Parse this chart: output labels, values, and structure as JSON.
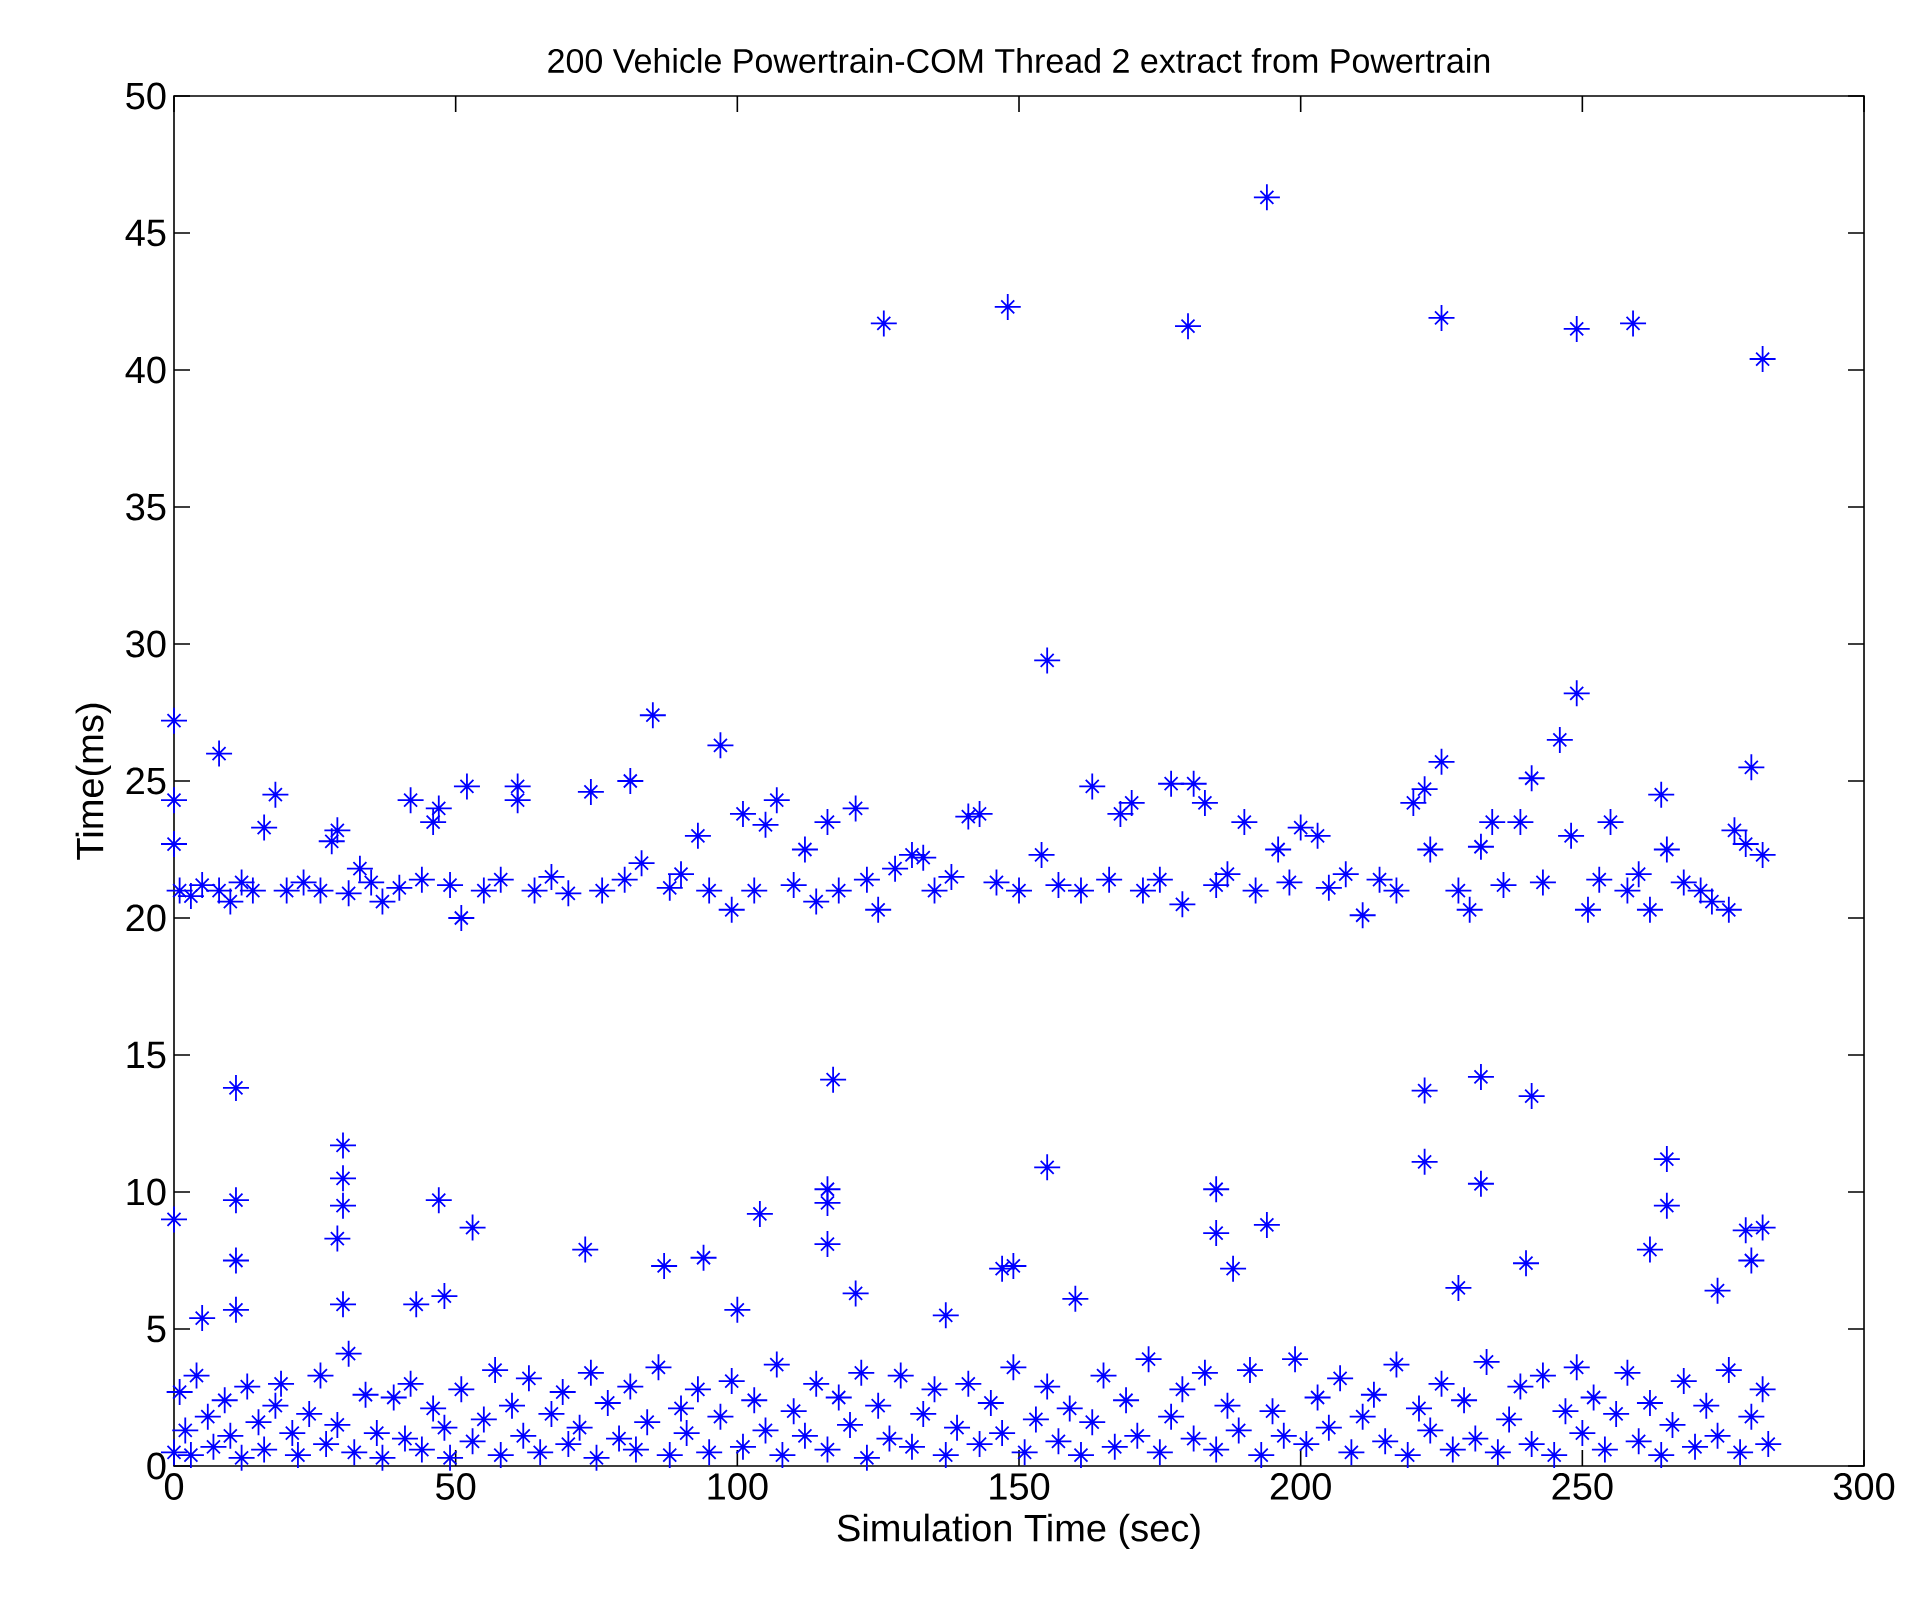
{
  "chart_data": {
    "type": "scatter",
    "title": "200 Vehicle Powertrain-COM Thread 2 extract from Powertrain",
    "xlabel": "Simulation Time (sec)",
    "ylabel": "Time(ms)",
    "xlim": [
      0,
      300
    ],
    "ylim": [
      0,
      50
    ],
    "xticks": [
      0,
      50,
      100,
      150,
      200,
      250,
      300
    ],
    "yticks": [
      0,
      5,
      10,
      15,
      20,
      25,
      30,
      35,
      40,
      45,
      50
    ],
    "grid": false,
    "marker": "cross",
    "series": [
      {
        "color": "#0000ff",
        "x": [
          126,
          148,
          180,
          194,
          225,
          249,
          259,
          282,
          0,
          8
        ],
        "values": [
          41.7,
          42.3,
          41.6,
          46.3,
          41.9,
          41.5,
          41.7,
          40.4,
          27.2,
          26
        ]
      },
      {
        "color": "#0000ff",
        "x": [
          0,
          0,
          1,
          3,
          5,
          8,
          10,
          12,
          14,
          16,
          18,
          20,
          23,
          26,
          28,
          29,
          31,
          33,
          35,
          37,
          40,
          42,
          44,
          46,
          47,
          49,
          51,
          52,
          55,
          58,
          61,
          61,
          64,
          67,
          70,
          74,
          76,
          80,
          81,
          83,
          85,
          88,
          90,
          93,
          95,
          97,
          99,
          101,
          103,
          105,
          107,
          110,
          112,
          114,
          116,
          118,
          121,
          123,
          125,
          128,
          131,
          133,
          135,
          138,
          141,
          143,
          146,
          150,
          154,
          155,
          157,
          161,
          163,
          166,
          168,
          170,
          172,
          175,
          177,
          179,
          181,
          183,
          185,
          187,
          190,
          192,
          196,
          198,
          200,
          203,
          205,
          208,
          211,
          214,
          217,
          220,
          222,
          223,
          225,
          228,
          230,
          232,
          234,
          236,
          239,
          241,
          243,
          246,
          248,
          249,
          251,
          253,
          255,
          258,
          260,
          262,
          264,
          265,
          268,
          271,
          273,
          276,
          277,
          279,
          280,
          282
        ],
        "values": [
          24.3,
          22.7,
          21,
          20.8,
          21.2,
          21,
          20.6,
          21.3,
          21,
          23.3,
          24.5,
          21,
          21.3,
          21,
          22.8,
          23.2,
          20.9,
          21.8,
          21.3,
          20.6,
          21.1,
          24.3,
          21.4,
          23.5,
          24,
          21.2,
          20,
          24.8,
          21,
          21.4,
          24.8,
          24.3,
          21,
          21.5,
          20.9,
          24.6,
          21,
          21.4,
          25,
          22,
          27.4,
          21.1,
          21.6,
          23,
          21,
          26.3,
          20.3,
          23.8,
          21,
          23.4,
          24.3,
          21.2,
          22.5,
          20.6,
          23.5,
          21,
          24,
          21.4,
          20.3,
          21.8,
          22.3,
          22.2,
          21,
          21.5,
          23.7,
          23.8,
          21.3,
          21,
          22.3,
          29.4,
          21.2,
          21,
          24.8,
          21.4,
          23.8,
          24.2,
          21,
          21.4,
          24.9,
          20.5,
          24.9,
          24.2,
          21.2,
          21.6,
          23.5,
          21,
          22.5,
          21.3,
          23.3,
          23,
          21.1,
          21.6,
          20.1,
          21.4,
          21,
          24.2,
          24.7,
          22.5,
          25.7,
          21,
          20.3,
          22.6,
          23.5,
          21.2,
          23.5,
          25.1,
          21.3,
          26.5,
          23,
          28.2,
          20.3,
          21.4,
          23.5,
          21,
          21.6,
          20.3,
          24.5,
          22.5,
          21.3,
          21,
          20.6,
          20.3,
          23.2,
          22.7,
          25.5,
          22.3
        ]
      },
      {
        "color": "#0000ff",
        "x": [
          11,
          117,
          222,
          232,
          241,
          155,
          222,
          232,
          265,
          30,
          30,
          30,
          11,
          0,
          47,
          53,
          104,
          116,
          116,
          116,
          185,
          185,
          188,
          194,
          265,
          262,
          279,
          282,
          280,
          274,
          11,
          29,
          73,
          87,
          94,
          147,
          149,
          240,
          228,
          43,
          48,
          30,
          11,
          5,
          121,
          137,
          160,
          100
        ],
        "values": [
          13.8,
          14.1,
          13.7,
          14.2,
          13.5,
          10.9,
          11.1,
          10.3,
          11.2,
          11.7,
          10.5,
          9.5,
          9.7,
          9,
          9.7,
          8.7,
          9.2,
          10.1,
          9.6,
          8.1,
          10.1,
          8.5,
          7.2,
          8.8,
          9.5,
          7.9,
          8.6,
          8.7,
          7.5,
          6.4,
          7.5,
          8.3,
          7.9,
          7.3,
          7.6,
          7.2,
          7.3,
          7.4,
          6.5,
          5.9,
          6.2,
          5.9,
          5.7,
          5.4,
          6.3,
          5.5,
          6.1,
          5.7
        ]
      },
      {
        "color": "#0000ff",
        "x": [
          0,
          1,
          2,
          3,
          4,
          6,
          7,
          9,
          10,
          12,
          13,
          15,
          16,
          18,
          19,
          21,
          22,
          24,
          26,
          27,
          29,
          31,
          32,
          34,
          36,
          37,
          39,
          41,
          42,
          44,
          46,
          48,
          49,
          51,
          53,
          55,
          57,
          58,
          60,
          62,
          63,
          65,
          67,
          69,
          70,
          72,
          74,
          75,
          77,
          79,
          81,
          82,
          84,
          86,
          88,
          90,
          91,
          93,
          95,
          97,
          99,
          101,
          103,
          105,
          107,
          108,
          110,
          112,
          114,
          116,
          118,
          120,
          122,
          123,
          125,
          127,
          129,
          131,
          133,
          135,
          137,
          139,
          141,
          143,
          145,
          147,
          149,
          151,
          153,
          155,
          157,
          159,
          161,
          163,
          165,
          167,
          169,
          171,
          173,
          175,
          177,
          179,
          181,
          183,
          185,
          187,
          189,
          191,
          193,
          195,
          197,
          199,
          201,
          203,
          205,
          207,
          209,
          211,
          213,
          215,
          217,
          219,
          221,
          223,
          225,
          227,
          229,
          231,
          233,
          235,
          237,
          239,
          241,
          243,
          245,
          247,
          249,
          250,
          252,
          254,
          256,
          258,
          260,
          262,
          264,
          266,
          268,
          270,
          272,
          274,
          276,
          278,
          280,
          282,
          283
        ],
        "values": [
          0.5,
          2.7,
          1.3,
          0.4,
          3.3,
          1.8,
          0.7,
          2.4,
          1.1,
          0.3,
          2.9,
          1.6,
          0.6,
          2.2,
          3,
          1.2,
          0.4,
          1.9,
          3.3,
          0.8,
          1.5,
          4.1,
          0.5,
          2.6,
          1.2,
          0.3,
          2.5,
          1,
          3,
          0.6,
          2.1,
          1.4,
          0.3,
          2.8,
          0.9,
          1.7,
          3.5,
          0.4,
          2.2,
          1.1,
          3.2,
          0.5,
          1.9,
          2.7,
          0.8,
          1.4,
          3.4,
          0.3,
          2.3,
          1,
          2.9,
          0.6,
          1.6,
          3.6,
          0.4,
          2.1,
          1.2,
          2.8,
          0.5,
          1.8,
          3.1,
          0.7,
          2.4,
          1.3,
          3.7,
          0.4,
          2,
          1.1,
          3,
          0.6,
          2.5,
          1.5,
          3.4,
          0.3,
          2.2,
          1,
          3.3,
          0.7,
          1.9,
          2.8,
          0.4,
          1.4,
          3,
          0.8,
          2.3,
          1.2,
          3.6,
          0.5,
          1.7,
          2.9,
          0.9,
          2.1,
          0.4,
          1.6,
          3.3,
          0.7,
          2.4,
          1.1,
          3.9,
          0.5,
          1.8,
          2.8,
          1,
          3.4,
          0.6,
          2.2,
          1.3,
          3.5,
          0.4,
          2,
          1.1,
          3.9,
          0.8,
          2.5,
          1.4,
          3.2,
          0.5,
          1.8,
          2.6,
          0.9,
          3.7,
          0.4,
          2.1,
          1.3,
          3,
          0.6,
          2.4,
          1,
          3.8,
          0.5,
          1.7,
          2.9,
          0.8,
          3.3,
          0.4,
          2,
          3.6,
          1.2,
          2.5,
          0.6,
          1.9,
          3.4,
          0.9,
          2.3,
          0.4,
          1.5,
          3.1,
          0.7,
          2.2,
          1.1,
          3.5,
          0.5,
          1.8,
          2.8,
          0.8
        ]
      }
    ]
  }
}
